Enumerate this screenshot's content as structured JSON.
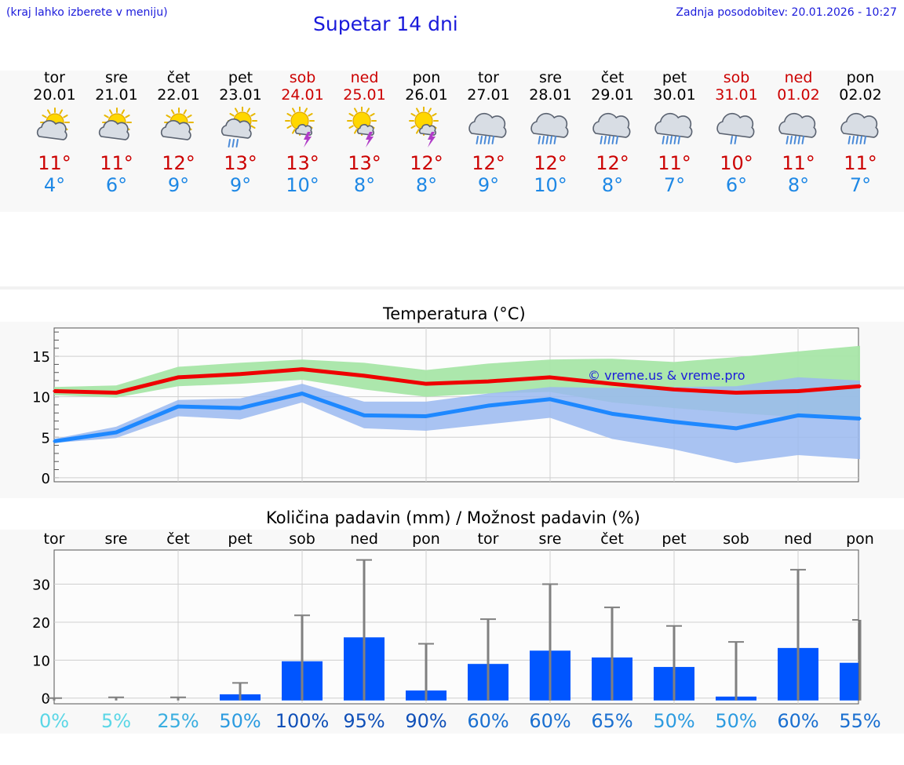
{
  "header": {
    "note": "(kraj lahko izberete v meniju)",
    "title": "Supetar 14 dni",
    "updated": "Zadnja posodobitev: 20.01.2026 - 10:27"
  },
  "days": [
    {
      "name": "tor",
      "date": "20.01",
      "weekend": false,
      "icon": "sun-cloud-icon",
      "max": "11°",
      "min": "4°"
    },
    {
      "name": "sre",
      "date": "21.01",
      "weekend": false,
      "icon": "sun-cloud-icon",
      "max": "11°",
      "min": "6°"
    },
    {
      "name": "čet",
      "date": "22.01",
      "weekend": false,
      "icon": "sun-cloud-icon",
      "max": "12°",
      "min": "9°"
    },
    {
      "name": "pet",
      "date": "23.01",
      "weekend": false,
      "icon": "sun-cloud-rain-icon",
      "max": "13°",
      "min": "9°"
    },
    {
      "name": "sob",
      "date": "24.01",
      "weekend": true,
      "icon": "sun-thunder-icon",
      "max": "13°",
      "min": "10°"
    },
    {
      "name": "ned",
      "date": "25.01",
      "weekend": true,
      "icon": "sun-thunder-icon",
      "max": "13°",
      "min": "8°"
    },
    {
      "name": "pon",
      "date": "26.01",
      "weekend": false,
      "icon": "sun-thunder-icon",
      "max": "12°",
      "min": "8°"
    },
    {
      "name": "tor",
      "date": "27.01",
      "weekend": false,
      "icon": "cloud-rain-icon",
      "max": "12°",
      "min": "9°"
    },
    {
      "name": "sre",
      "date": "28.01",
      "weekend": false,
      "icon": "cloud-rain-icon",
      "max": "12°",
      "min": "10°"
    },
    {
      "name": "čet",
      "date": "29.01",
      "weekend": false,
      "icon": "cloud-rain-icon",
      "max": "12°",
      "min": "8°"
    },
    {
      "name": "pet",
      "date": "30.01",
      "weekend": false,
      "icon": "cloud-rain-icon",
      "max": "11°",
      "min": "7°"
    },
    {
      "name": "sob",
      "date": "31.01",
      "weekend": true,
      "icon": "cloud-rain-light-icon",
      "max": "10°",
      "min": "6°"
    },
    {
      "name": "ned",
      "date": "01.02",
      "weekend": true,
      "icon": "cloud-rain-icon",
      "max": "11°",
      "min": "8°"
    },
    {
      "name": "pon",
      "date": "02.02",
      "weekend": false,
      "icon": "cloud-rain-icon",
      "max": "11°",
      "min": "7°"
    }
  ],
  "colors": {
    "max_line": "#ee0000",
    "min_line": "#1e88ff",
    "max_band": "#a8e6a8",
    "min_band": "#9ab8f0",
    "overlap": "#72b8a0",
    "bar": "#0055ff",
    "whisker": "#808080"
  },
  "chart_data": [
    {
      "type": "line",
      "title": "Temperatura (°C)",
      "watermark": "© vreme.us & vreme.pro",
      "x": [
        0,
        1,
        2,
        3,
        4,
        5,
        6,
        7,
        8,
        9,
        10,
        11,
        12,
        13
      ],
      "ylim": [
        -0.5,
        18.5
      ],
      "yticks": [
        0,
        5,
        10,
        15
      ],
      "series": [
        {
          "name": "max",
          "values": [
            10.7,
            10.5,
            12.4,
            12.8,
            13.4,
            12.6,
            11.6,
            11.9,
            12.4,
            11.6,
            10.9,
            10.5,
            10.7,
            11.3
          ],
          "band_low": [
            10.2,
            9.9,
            11.3,
            11.6,
            12.1,
            10.9,
            10.0,
            10.4,
            10.6,
            9.3,
            8.6,
            8.0,
            7.5,
            7.5
          ],
          "band_high": [
            11.2,
            11.4,
            13.7,
            14.2,
            14.6,
            14.2,
            13.3,
            14.1,
            14.6,
            14.7,
            14.3,
            14.9,
            15.6,
            16.3
          ]
        },
        {
          "name": "min",
          "values": [
            4.5,
            5.6,
            8.8,
            8.6,
            10.4,
            7.7,
            7.6,
            8.9,
            9.7,
            7.9,
            6.9,
            6.1,
            7.7,
            7.3
          ],
          "band_low": [
            4.3,
            4.9,
            7.6,
            7.2,
            9.3,
            6.1,
            5.8,
            6.6,
            7.4,
            4.8,
            3.5,
            1.8,
            2.8,
            2.3
          ],
          "band_high": [
            4.8,
            6.3,
            9.6,
            9.8,
            11.6,
            9.4,
            9.4,
            10.4,
            11.2,
            11.1,
            11.2,
            11.3,
            12.4,
            12.0
          ]
        }
      ]
    },
    {
      "type": "bar",
      "title": "Količina padavin (mm) / Možnost padavin (%)",
      "categories": [
        "tor",
        "sre",
        "čet",
        "pet",
        "sob",
        "ned",
        "pon",
        "tor",
        "sre",
        "čet",
        "pet",
        "sob",
        "ned",
        "pon"
      ],
      "ylim": [
        -1.5,
        39
      ],
      "yticks": [
        0,
        10,
        20,
        30
      ],
      "values": [
        0,
        0,
        0,
        1,
        9.7,
        16,
        2,
        9,
        12.5,
        10.7,
        8.2,
        0.4,
        13.2,
        9.3
      ],
      "error_high": [
        0,
        0.2,
        0.2,
        4,
        21.8,
        36.4,
        14.3,
        20.8,
        30,
        23.9,
        19,
        14.8,
        33.8,
        20.6
      ],
      "probability": [
        "0%",
        "5%",
        "25%",
        "50%",
        "100%",
        "95%",
        "90%",
        "60%",
        "60%",
        "65%",
        "50%",
        "50%",
        "60%",
        "55%"
      ],
      "probability_values": [
        0,
        5,
        25,
        50,
        100,
        95,
        90,
        60,
        60,
        65,
        50,
        50,
        60,
        55
      ]
    }
  ]
}
